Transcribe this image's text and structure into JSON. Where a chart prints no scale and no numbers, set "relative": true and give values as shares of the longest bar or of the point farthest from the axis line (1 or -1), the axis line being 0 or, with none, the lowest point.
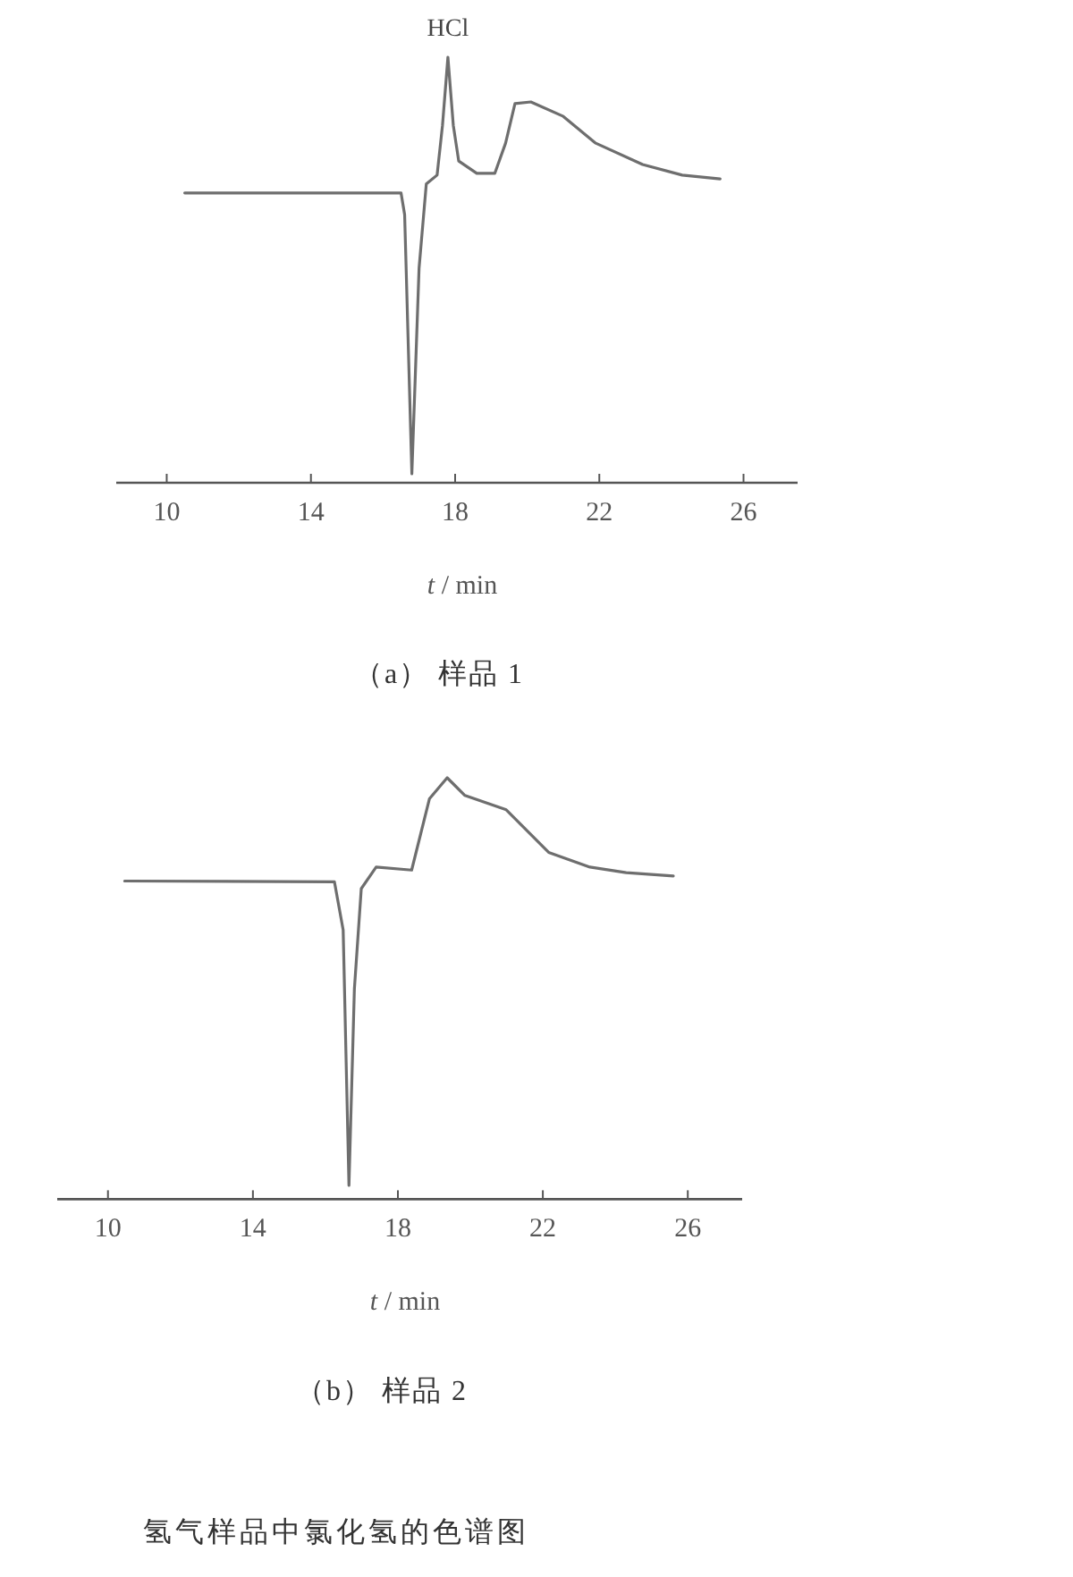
{
  "chart_data": [
    {
      "type": "line",
      "title": "（a）  样品 1",
      "xlabel": "*t* / min",
      "relative": true,
      "color": "#6e6e6e",
      "xlim": [
        8.6,
        27.5
      ],
      "xticks": [
        10,
        14,
        18,
        22,
        26
      ],
      "x": [
        10.5,
        16.5,
        16.6,
        16.8,
        17.0,
        17.2,
        17.5,
        17.65,
        17.8,
        17.95,
        18.1,
        18.6,
        19.1,
        19.4,
        19.66,
        20.1,
        21.0,
        21.9,
        23.2,
        24.3,
        25.35
      ],
      "values": [
        0.681,
        0.681,
        0.63,
        0.021,
        0.504,
        0.702,
        0.723,
        0.84,
        1,
        0.84,
        0.756,
        0.727,
        0.727,
        0.798,
        0.891,
        0.895,
        0.861,
        0.798,
        0.748,
        0.723,
        0.714
      ],
      "annotations": [
        {
          "text": "HCl",
          "x": 17.8,
          "y": 1
        }
      ]
    },
    {
      "type": "line",
      "title": "（b）  样品 2",
      "xlabel": "*t* / min",
      "relative": true,
      "color": "#6e6e6e",
      "xlim": [
        8.6,
        27.5
      ],
      "xticks": [
        10,
        14,
        18,
        22,
        26
      ],
      "x": [
        10.46,
        16.25,
        16.49,
        16.65,
        16.8,
        16.99,
        17.4,
        18.38,
        18.87,
        19.36,
        19.85,
        20.99,
        22.16,
        23.3,
        24.3,
        25.6
      ],
      "values": [
        0.755,
        0.753,
        0.639,
        0.033,
        0.499,
        0.737,
        0.788,
        0.781,
        0.95,
        1,
        0.958,
        0.924,
        0.823,
        0.788,
        0.775,
        0.767
      ],
      "annotations": [
        "氢气样品中氯化氢的色谱图"
      ]
    }
  ]
}
